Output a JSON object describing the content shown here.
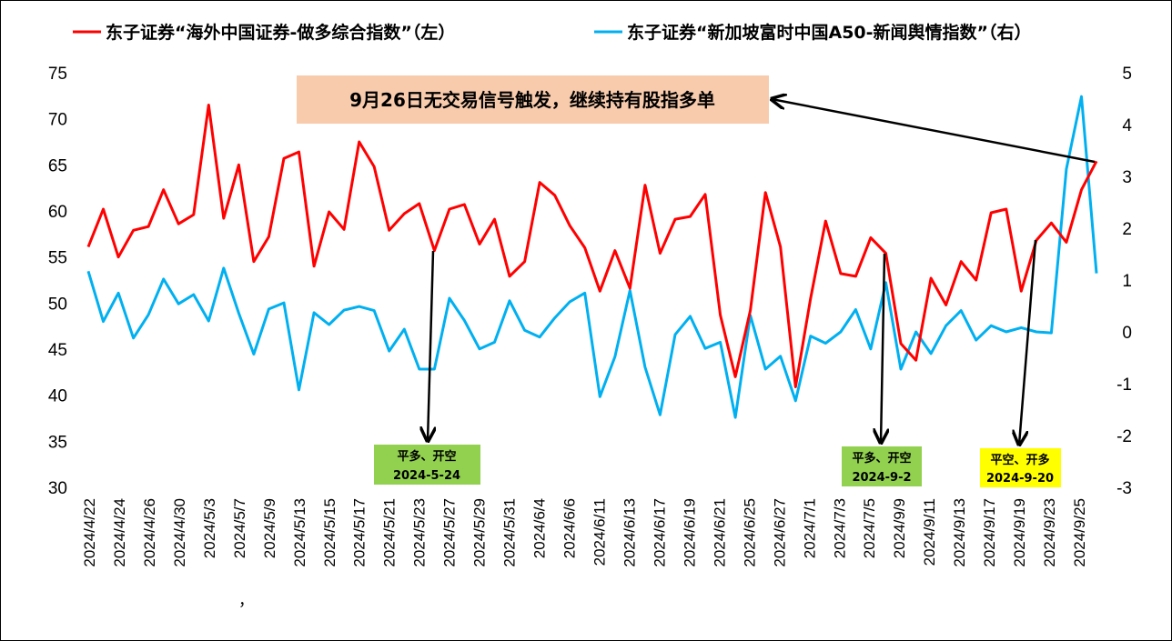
{
  "chart_data": {
    "type": "line",
    "legend": {
      "placement": "top",
      "items": [
        {
          "label": "东子证券“海外中国证券-做多综合指数”（左）",
          "color": "#ff0000"
        },
        {
          "label": "东子证券“新加坡富时中国A50-新闻舆情指数”（右）",
          "color": "#00b0f0"
        }
      ]
    },
    "x_tick_labels": [
      "2024/4/22",
      "2024/4/24",
      "2024/4/26",
      "2024/4/30",
      "2024/5/3",
      "2024/5/7",
      "2024/5/9",
      "2024/5/13",
      "2024/5/15",
      "2024/5/17",
      "2024/5/21",
      "2024/5/23",
      "2024/5/27",
      "2024/5/29",
      "2024/5/31",
      "2024/6/4",
      "2024/6/6",
      "2024/6/11",
      "2024/6/13",
      "2024/6/17",
      "2024/6/19",
      "2024/6/21",
      "2024/6/25",
      "2024/6/27",
      "2024/7/1",
      "2024/7/3",
      "2024/7/5",
      "2024/9/9",
      "2024/9/11",
      "2024/9/13",
      "2024/9/17",
      "2024/9/19",
      "2024/9/23",
      "2024/9/25"
    ],
    "stray_label": "，",
    "y_left": {
      "ylim": [
        30,
        75
      ],
      "ticks": [
        30,
        35,
        40,
        45,
        50,
        55,
        60,
        65,
        70,
        75
      ]
    },
    "y_right": {
      "ylim": [
        -3,
        5
      ],
      "ticks": [
        -3,
        -2,
        -1,
        0,
        1,
        2,
        3,
        4,
        5
      ]
    },
    "grid": false,
    "series": [
      {
        "name": "东子证券“海外中国证券-做多综合指数”（左）",
        "axis": "left",
        "color": "#ff0000",
        "values": [
          56.1,
          60.2,
          55.0,
          57.9,
          58.3,
          62.3,
          58.6,
          59.6,
          71.5,
          59.2,
          65.0,
          54.5,
          57.2,
          65.7,
          66.4,
          54.0,
          59.9,
          58.0,
          67.5,
          64.8,
          57.9,
          59.7,
          60.8,
          55.7,
          60.2,
          60.7,
          56.4,
          59.1,
          52.9,
          54.5,
          63.1,
          61.7,
          58.4,
          56.0,
          51.3,
          55.7,
          51.6,
          62.8,
          55.4,
          59.1,
          59.4,
          61.8,
          48.7,
          42.0,
          49.2,
          62.0,
          56.1,
          40.9,
          50.5,
          58.9,
          53.2,
          52.9,
          57.1,
          55.4,
          45.6,
          43.8,
          52.7,
          49.8,
          54.5,
          52.5,
          59.8,
          60.2,
          51.3,
          56.8,
          58.7,
          56.6,
          62.3,
          65.4
        ]
      },
      {
        "name": "东子证券“新加坡富时中国A50-新闻舆情指数”（右）",
        "axis": "right",
        "color": "#00b0f0",
        "values": [
          1.17,
          0.2,
          0.75,
          -0.12,
          0.33,
          1.02,
          0.54,
          0.72,
          0.21,
          1.23,
          0.36,
          -0.43,
          0.44,
          0.56,
          -1.12,
          0.37,
          0.14,
          0.42,
          0.49,
          0.41,
          -0.37,
          0.05,
          -0.72,
          -0.72,
          0.65,
          0.22,
          -0.33,
          -0.2,
          0.6,
          0.03,
          -0.1,
          0.27,
          0.58,
          0.75,
          -1.25,
          -0.48,
          0.8,
          -0.68,
          -1.6,
          -0.05,
          0.3,
          -0.32,
          -0.2,
          -1.65,
          0.32,
          -0.72,
          -0.47,
          -1.33,
          -0.08,
          -0.22,
          0.0,
          0.43,
          -0.33,
          0.95,
          -0.72,
          0.0,
          -0.42,
          0.12,
          0.41,
          -0.16,
          0.12,
          0.0,
          0.08,
          0.0,
          -0.02,
          3.14,
          4.54,
          1.13
        ]
      }
    ],
    "annotations": {
      "banner": {
        "text": "9月26日无交易信号触发，继续持有股指多单",
        "bg": "#f8cbad"
      },
      "callouts": [
        {
          "lines": [
            "平多、开空",
            "2024-5-24"
          ],
          "bg": "#92d050",
          "series_index": 23
        },
        {
          "lines": [
            "平多、开空",
            "2024-9-2"
          ],
          "bg": "#92d050",
          "series_index": 53
        },
        {
          "lines": [
            "平空、开多",
            "2024-9-20"
          ],
          "bg": "#ffff00",
          "series_index": 63
        }
      ]
    }
  }
}
